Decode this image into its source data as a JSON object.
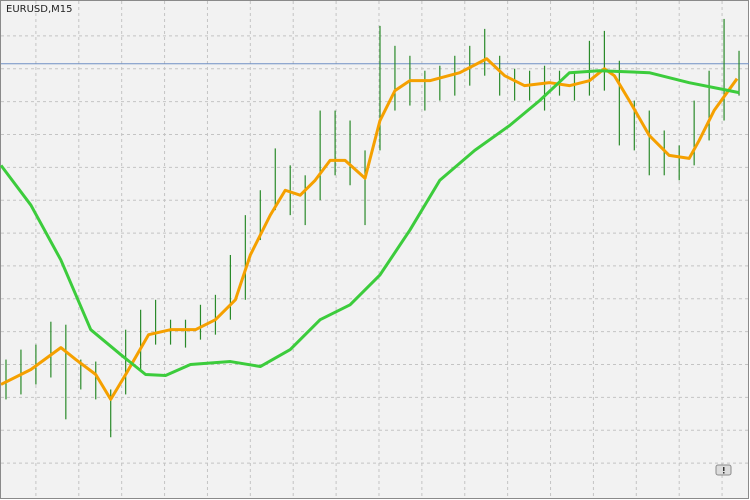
{
  "chart_data": {
    "type": "ohlc",
    "title": "EURUSD,M15",
    "xlim": [
      0,
      750
    ],
    "ylim": [
      0,
      500
    ],
    "xticks": [
      35,
      78,
      121,
      164,
      207,
      250,
      293,
      336,
      379,
      422,
      465,
      508,
      551,
      594,
      637,
      680,
      723
    ],
    "yticks": [
      36,
      69,
      102,
      135,
      168,
      201,
      234,
      267,
      300,
      333,
      366,
      399,
      432,
      465
    ],
    "grid": true,
    "bar_color": "#2a8a2a",
    "x": [
      5,
      20,
      35,
      50,
      65,
      80,
      95,
      110,
      125,
      140,
      155,
      170,
      185,
      200,
      215,
      230,
      245,
      260,
      275,
      290,
      305,
      320,
      335,
      350,
      365,
      380,
      395,
      410,
      425,
      440,
      455,
      470,
      485,
      500,
      515,
      530,
      545,
      560,
      575,
      590,
      605,
      620,
      635,
      650,
      665,
      680,
      695,
      710,
      725,
      740
    ],
    "high": [
      140,
      150,
      155,
      178,
      175,
      140,
      138,
      110,
      170,
      190,
      200,
      180,
      180,
      195,
      205,
      245,
      285,
      310,
      352,
      335,
      325,
      390,
      390,
      380,
      350,
      475,
      455,
      445,
      430,
      435,
      445,
      455,
      472,
      445,
      432,
      430,
      435,
      430,
      428,
      460,
      470,
      440,
      400,
      390,
      370,
      355,
      400,
      430,
      482,
      450
    ],
    "low": [
      100,
      105,
      115,
      122,
      80,
      110,
      100,
      62,
      105,
      130,
      155,
      155,
      152,
      160,
      165,
      180,
      200,
      260,
      290,
      285,
      275,
      300,
      325,
      315,
      275,
      350,
      390,
      395,
      390,
      400,
      405,
      415,
      425,
      405,
      400,
      400,
      390,
      405,
      400,
      405,
      410,
      355,
      350,
      325,
      325,
      320,
      335,
      360,
      380,
      405
    ],
    "level": 437,
    "level_color": "#6f8fc4",
    "overlays": [
      {
        "color": "#f5a000",
        "x": [
          0,
          30,
          60,
          75,
          95,
          110,
          125,
          148,
          170,
          195,
          215,
          235,
          250,
          270,
          285,
          300,
          315,
          330,
          345,
          365,
          380,
          395,
          410,
          430,
          460,
          487,
          505,
          525,
          550,
          570,
          590,
          605,
          615,
          630,
          650,
          670,
          690,
          700,
          715,
          738
        ],
        "values": [
          115,
          130,
          152,
          140,
          125,
          100,
          125,
          165,
          170,
          170,
          180,
          200,
          245,
          285,
          310,
          305,
          320,
          340,
          340,
          322,
          380,
          410,
          420,
          420,
          428,
          442,
          425,
          415,
          418,
          415,
          420,
          432,
          425,
          400,
          365,
          345,
          342,
          360,
          390,
          422
        ]
      },
      {
        "color": "#3ccc3c",
        "x": [
          0,
          30,
          60,
          90,
          120,
          145,
          165,
          190,
          230,
          260,
          290,
          320,
          350,
          380,
          410,
          440,
          475,
          510,
          540,
          570,
          600,
          650,
          690,
          720,
          740
        ],
        "values": [
          335,
          295,
          240,
          170,
          145,
          125,
          124,
          135,
          138,
          133,
          150,
          180,
          195,
          225,
          270,
          320,
          350,
          375,
          400,
          428,
          430,
          428,
          418,
          412,
          408
        ]
      }
    ]
  }
}
